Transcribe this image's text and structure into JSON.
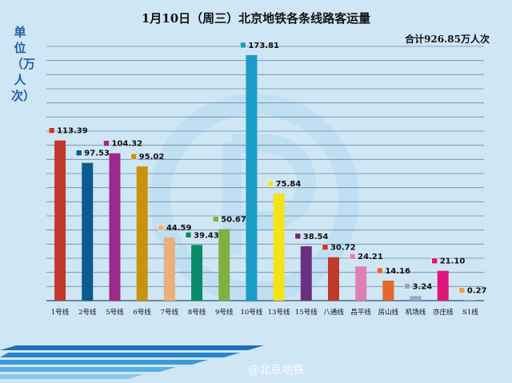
{
  "title": "1月10日（周三）北京地铁各条线路客运量",
  "total_label": "合计926.85万人次",
  "unit_label": "单位（万人次）",
  "watermark": "@北京地铁",
  "colors": {
    "background": "#cfe6f5",
    "grid": "#1f3f66",
    "stripe": "#1f6fb8"
  },
  "chart_data": {
    "type": "bar",
    "title": "1月10日（周三）北京地铁各条线路客运量",
    "ylabel": "单位（万人次）",
    "xlabel": "",
    "ylim": [
      0,
      180
    ],
    "grid": true,
    "categories": [
      "1号线",
      "2号线",
      "5号线",
      "6号线",
      "7号线",
      "8号线",
      "9号线",
      "10号线",
      "13号线",
      "15号线",
      "八通线",
      "昌平线",
      "房山线",
      "机场线",
      "亦庄线",
      "S1线"
    ],
    "values": [
      113.39,
      97.53,
      104.32,
      95.02,
      44.59,
      39.43,
      50.67,
      173.81,
      75.84,
      38.54,
      30.72,
      24.21,
      14.16,
      3.24,
      21.1,
      0.27
    ],
    "value_labels": [
      "113.39",
      "97.53",
      "104.32",
      "95.02",
      "44.59",
      "39.43",
      "50.67",
      "173.81",
      "75.84",
      "38.54",
      "30.72",
      "24.21",
      "14.16",
      "3.24",
      "21.10",
      "0.27"
    ],
    "bar_colors": [
      "#c0392b",
      "#0b5c8e",
      "#9b2a8c",
      "#c8920a",
      "#e8b07a",
      "#0a8a6a",
      "#7fb040",
      "#1a9cc8",
      "#f5e31a",
      "#6b2f82",
      "#c0392b",
      "#e080b0",
      "#e2692a",
      "#9aa6c8",
      "#e0157a",
      "#e8a050"
    ],
    "total": "合计926.85万人次"
  }
}
